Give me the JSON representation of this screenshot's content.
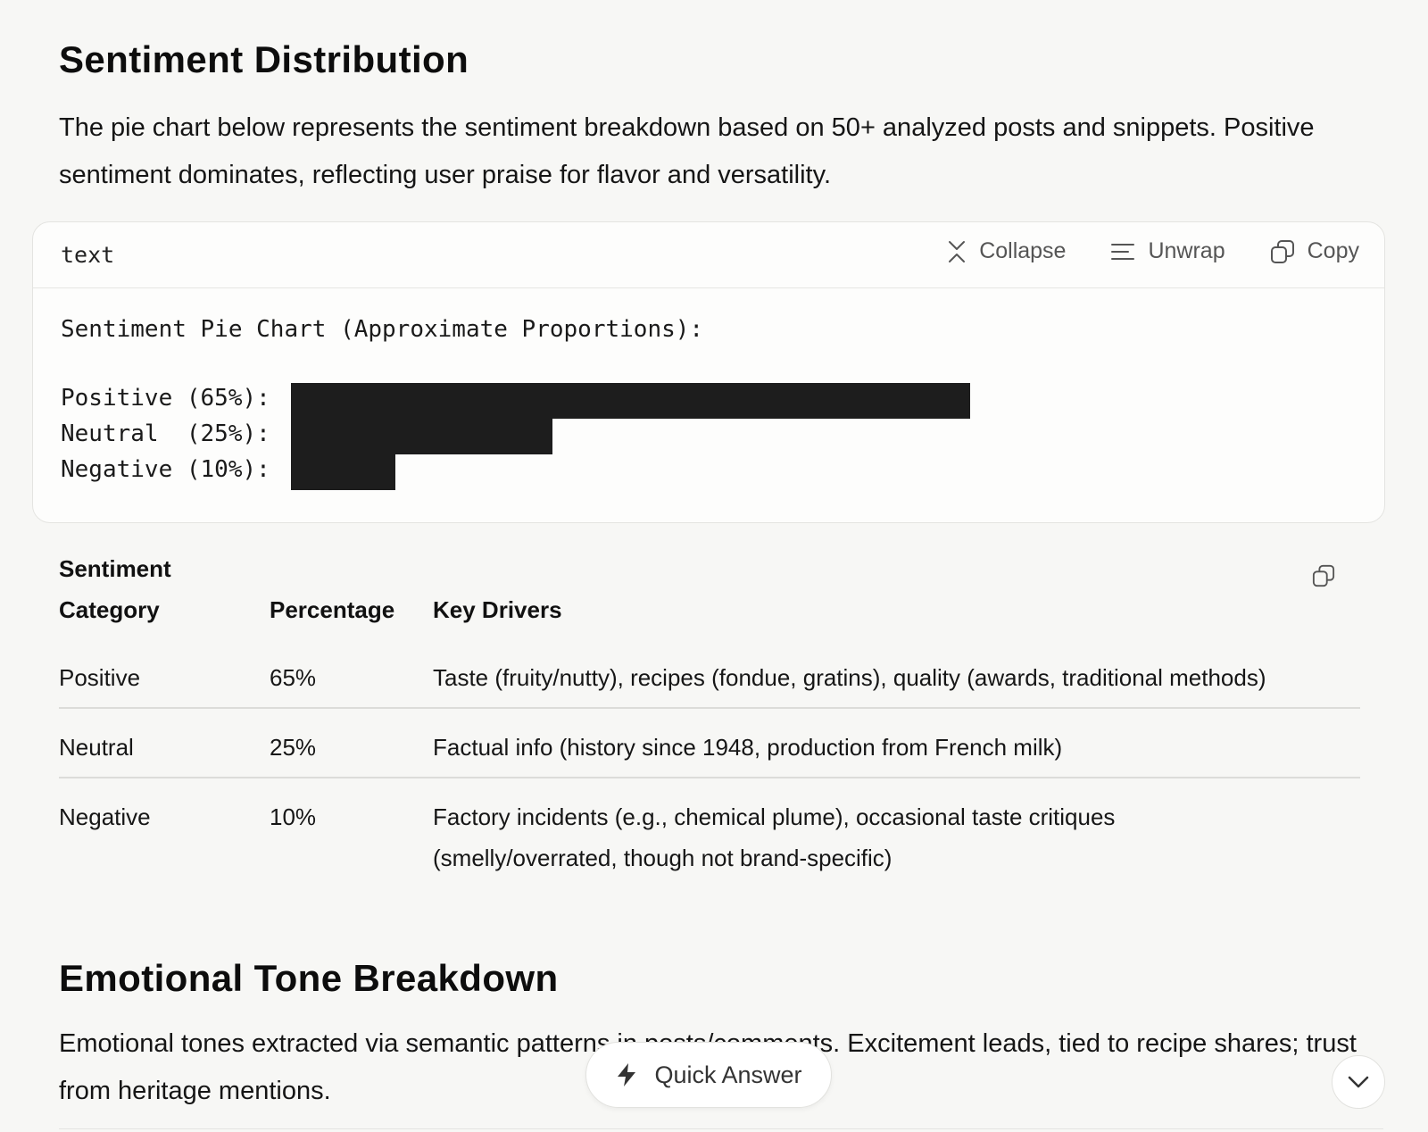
{
  "sections": {
    "sentiment": {
      "title": "Sentiment Distribution",
      "intro": "The pie chart below represents the sentiment breakdown based on 50+ analyzed posts and snippets. Positive sentiment dominates, reflecting user praise for flavor and versatility."
    },
    "emotional": {
      "title": "Emotional Tone Breakdown",
      "intro": "Emotional tones extracted via semantic patterns in posts/comments. Excitement leads, tied to recipe shares; trust from heritage mentions."
    }
  },
  "code_block": {
    "language": "text",
    "actions": {
      "collapse": "Collapse",
      "unwrap": "Unwrap",
      "copy": "Copy"
    },
    "title": "Sentiment Pie Chart (Approximate Proportions):",
    "rows": [
      {
        "label": "Positive (65%):",
        "percent": 65
      },
      {
        "label": "Neutral  (25%):",
        "percent": 25
      },
      {
        "label": "Negative (10%):",
        "percent": 10
      }
    ]
  },
  "table": {
    "headers": {
      "category_line1": "Sentiment",
      "category_line2": "Category",
      "percentage": "Percentage",
      "drivers": "Key Drivers"
    },
    "rows": [
      {
        "category": "Positive",
        "percentage": "65%",
        "drivers": "Taste (fruity/nutty), recipes (fondue, gratins), quality (awards, traditional methods)"
      },
      {
        "category": "Neutral",
        "percentage": "25%",
        "drivers": "Factual info (history since 1948, production from French milk)"
      },
      {
        "category": "Negative",
        "percentage": "10%",
        "drivers_line1": "Factory incidents (e.g., chemical plume), occasional taste critiques",
        "drivers_line2": "(smelly/overrated, though not brand-specific)"
      }
    ]
  },
  "quick_answer": {
    "label": "Quick Answer"
  },
  "icons": {
    "collapse": "collapse-icon",
    "unwrap": "unwrap-icon",
    "copy": "copy-icon",
    "bolt": "bolt-icon",
    "chevron": "chevron-down-icon"
  },
  "colors": {
    "background": "#f7f7f5",
    "bar_fill": "#1d1d1d",
    "card_background": "#fdfdfc"
  }
}
